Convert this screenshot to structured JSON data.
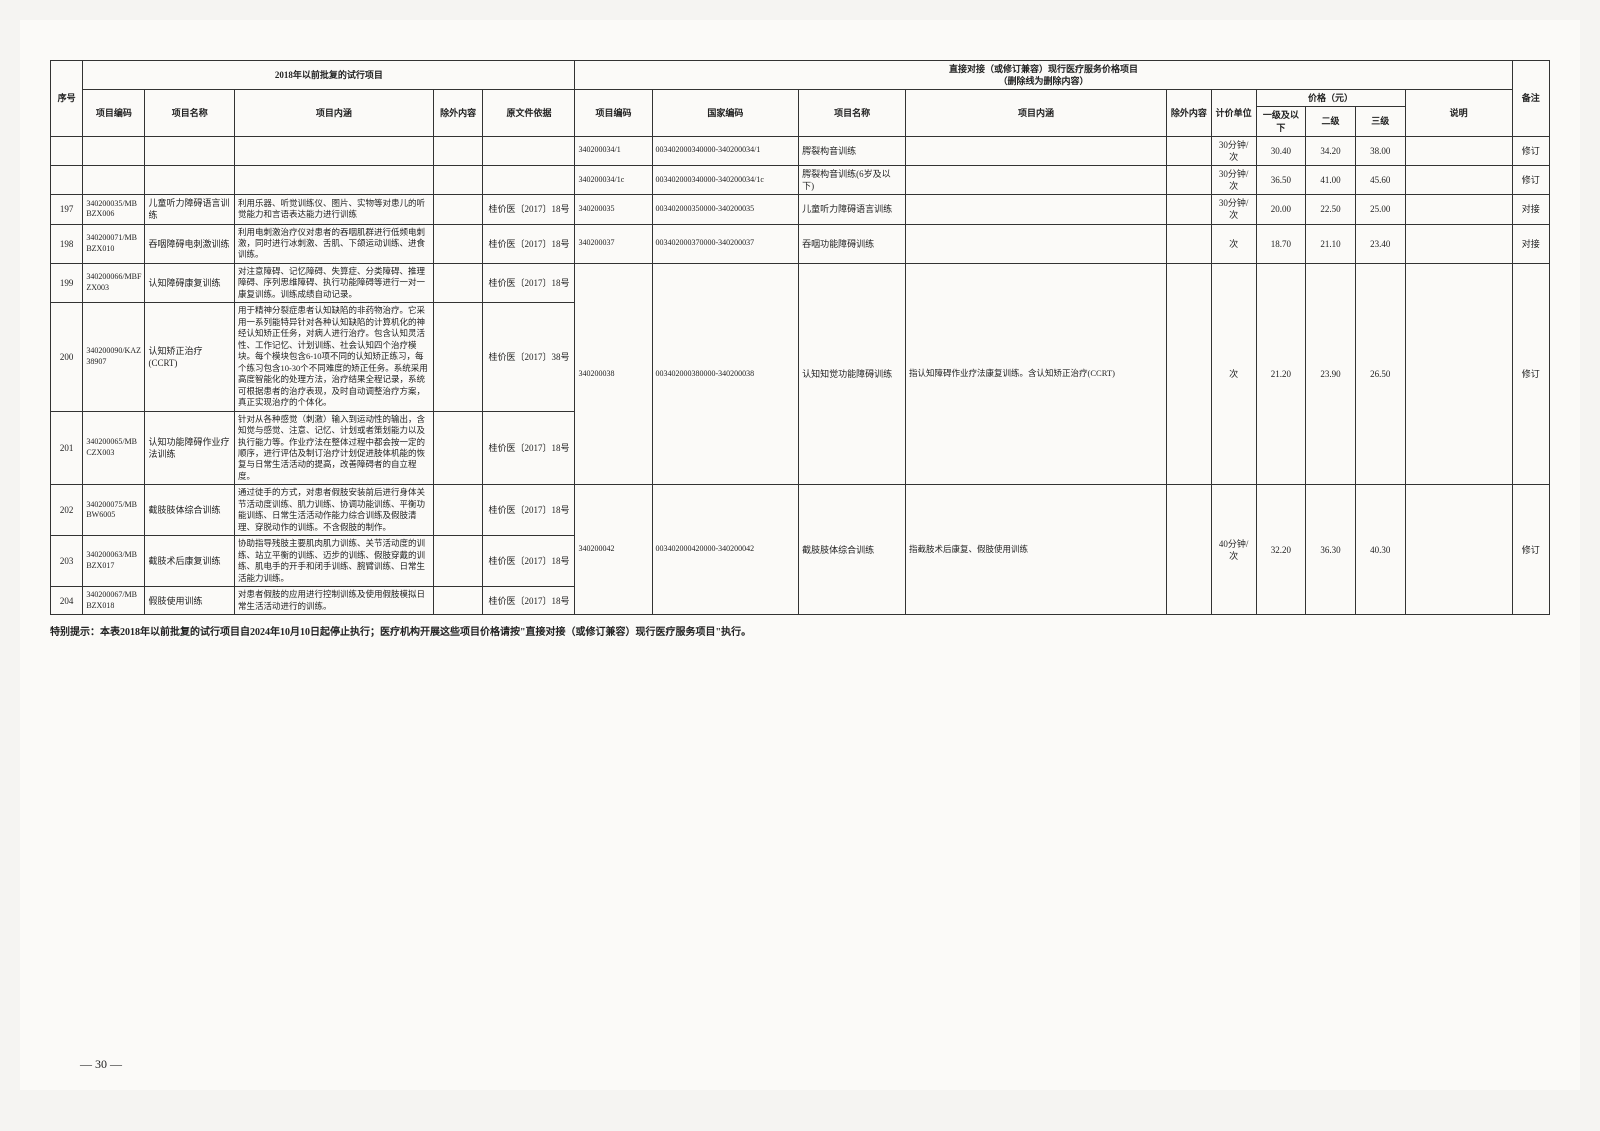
{
  "headers": {
    "group_left": "2018年以前批复的试行项目",
    "group_right": "直接对接（或修订兼容）现行医疗服务价格项目\n（删除线为删除内容）",
    "seq": "序号",
    "code_l": "项目编码",
    "name_l": "项目名称",
    "content_l": "项目内涵",
    "excl_l": "除外内容",
    "doc_l": "原文件依据",
    "code_r": "项目编码",
    "natcode_r": "国家编码",
    "name_r": "项目名称",
    "content_r": "项目内涵",
    "excl_r": "除外内容",
    "unit_r": "计价单位",
    "price_hdr": "价格（元）",
    "p1": "一级及以下",
    "p2": "二级",
    "p3": "三级",
    "note": "说明",
    "remark": "备注"
  },
  "rows": [
    {
      "seq": "",
      "codeL": "",
      "nameL": "",
      "contentL": "",
      "exclL": "",
      "docL": "",
      "codeR": "340200034/1",
      "natR": "003402000340000-340200034/1",
      "nameR": "腭裂构音训练",
      "contentR": "",
      "exclR": "",
      "unit": "30分钟/次",
      "p1": "30.40",
      "p2": "34.20",
      "p3": "38.00",
      "note": "",
      "rem": "修订"
    },
    {
      "seq": "",
      "codeL": "",
      "nameL": "",
      "contentL": "",
      "exclL": "",
      "docL": "",
      "codeR": "340200034/1c",
      "natR": "003402000340000-340200034/1c",
      "nameR": "腭裂构音训练(6岁及以下)",
      "contentR": "",
      "exclR": "",
      "unit": "30分钟/次",
      "p1": "36.50",
      "p2": "41.00",
      "p3": "45.60",
      "note": "",
      "rem": "修订"
    },
    {
      "seq": "197",
      "codeL": "340200035/MBBZX006",
      "nameL": "儿童听力障碍语言训练",
      "contentL": "利用乐器、听觉训练仪、图片、实物等对患儿的听觉能力和言语表达能力进行训练",
      "exclL": "",
      "docL": "桂价医〔2017〕18号",
      "codeR": "340200035",
      "natR": "003402000350000-340200035",
      "nameR": "儿童听力障碍语言训练",
      "contentR": "",
      "exclR": "",
      "unit": "30分钟/次",
      "p1": "20.00",
      "p2": "22.50",
      "p3": "25.00",
      "note": "",
      "rem": "对接"
    },
    {
      "seq": "198",
      "codeL": "340200071/MBBZX010",
      "nameL": "吞咽障碍电刺激训练",
      "contentL": "利用电刺激治疗仪对患者的吞咽肌群进行低频电刺激，同时进行冰刺激、舌肌、下颌运动训练、进食训练。",
      "exclL": "",
      "docL": "桂价医〔2017〕18号",
      "codeR": "340200037",
      "natR": "003402000370000-340200037",
      "nameR": "吞咽功能障碍训练",
      "contentR": "",
      "exclR": "",
      "unit": "次",
      "p1": "18.70",
      "p2": "21.10",
      "p3": "23.40",
      "note": "",
      "rem": "对接"
    },
    {
      "seq": "199",
      "codeL": "340200066/MBFZX003",
      "nameL": "认知障碍康复训练",
      "contentL": "对注意障碍、记忆障碍、失算症、分类障碍、推理障碍、序列思维障碍、执行功能障碍等进行一对一康复训练。训练成绩自动记录。",
      "exclL": "",
      "docL": "桂价医〔2017〕18号",
      "rightMerge": "B"
    },
    {
      "seq": "200",
      "codeL": "340200090/KAZ38907",
      "nameL": "认知矫正治疗(CCRT)",
      "contentL": "用于精神分裂症患者认知缺陷的非药物治疗。它采用一系列能特异针对各种认知缺陷的计算机化的神经认知矫正任务，对病人进行治疗。包含认知灵活性、工作记忆、计划训练、社会认知四个治疗模块。每个模块包含6-10项不同的认知矫正练习，每个练习包含10-30个不同难度的矫正任务。系统采用高度智能化的处理方法，治疗结果全程记录，系统可根据患者的治疗表现，及时自动调整治疗方案，真正实现治疗的个体化。",
      "exclL": "",
      "docL": "桂价医〔2017〕38号",
      "rightMerge": "B_ANCHOR",
      "codeR": "340200038",
      "natR": "003402000380000-340200038",
      "nameR": "认知知觉功能障碍训练",
      "contentR": "指认知障碍作业疗法康复训练。含认知矫正治疗(CCRT)",
      "exclR": "",
      "unit": "次",
      "p1": "21.20",
      "p2": "23.90",
      "p3": "26.50",
      "note": "",
      "rem": "修订"
    },
    {
      "seq": "201",
      "codeL": "340200065/MBCZX003",
      "nameL": "认知功能障碍作业疗法训练",
      "contentL": "针对从各种感觉（刺激）输入到运动性的输出，含知觉与感觉、注意、记忆、计划或者策划能力以及执行能力等。作业疗法在整体过程中都会按一定的顺序，进行评估及制订治疗计划促进肢体机能的恢复与日常生活活动的提高，改善障碍者的自立程度。",
      "exclL": "",
      "docL": "桂价医〔2017〕18号",
      "rightMerge": "B"
    },
    {
      "seq": "202",
      "codeL": "340200075/MBBW6005",
      "nameL": "截肢肢体综合训练",
      "contentL": "通过徒手的方式，对患者假肢安装前后进行身体关节活动度训练、肌力训练、协调功能训练、平衡功能训练、日常生活活动作能力综合训练及假肢清理、穿脱动作的训练。不含假肢的制作。",
      "exclL": "",
      "docL": "桂价医〔2017〕18号",
      "rightMerge": "C"
    },
    {
      "seq": "203",
      "codeL": "340200063/MBBZX017",
      "nameL": "截肢术后康复训练",
      "contentL": "协助指导残肢主要肌肉肌力训练、关节活动度的训练、站立平衡的训练、迈步的训练、假肢穿戴的训练、肌电手的开手和闭手训练、腕臂训练、日常生活能力训练。",
      "exclL": "",
      "docL": "桂价医〔2017〕18号",
      "rightMerge": "C_ANCHOR",
      "codeR": "340200042",
      "natR": "003402000420000-340200042",
      "nameR": "截肢肢体综合训练",
      "contentR": "指截肢术后康复、假肢使用训练",
      "exclR": "",
      "unit": "40分钟/次",
      "p1": "32.20",
      "p2": "36.30",
      "p3": "40.30",
      "note": "",
      "rem": "修订"
    },
    {
      "seq": "204",
      "codeL": "340200067/MBBZX018",
      "nameL": "假肢使用训练",
      "contentL": "对患者假肢的应用进行控制训练及使用假肢模拟日常生活活动进行的训练。",
      "exclL": "",
      "docL": "桂价医〔2017〕18号",
      "rightMerge": "C"
    }
  ],
  "footnote": "特别提示：本表2018年以前批复的试行项目自2024年10月10日起停止执行；医疗机构开展这些项目价格请按\"直接对接（或修订兼容）现行医疗服务项目\"执行。",
  "pageNum": "— 30 —",
  "colWidths": {
    "seq": 26,
    "codeL": 50,
    "nameL": 72,
    "contentL": 160,
    "exclL": 40,
    "docL": 74,
    "codeR": 62,
    "natR": 118,
    "nameR": 86,
    "contentR": 210,
    "exclR": 36,
    "unit": 36,
    "p1": 40,
    "p2": 40,
    "p3": 40,
    "note": 86,
    "rem": 30
  }
}
